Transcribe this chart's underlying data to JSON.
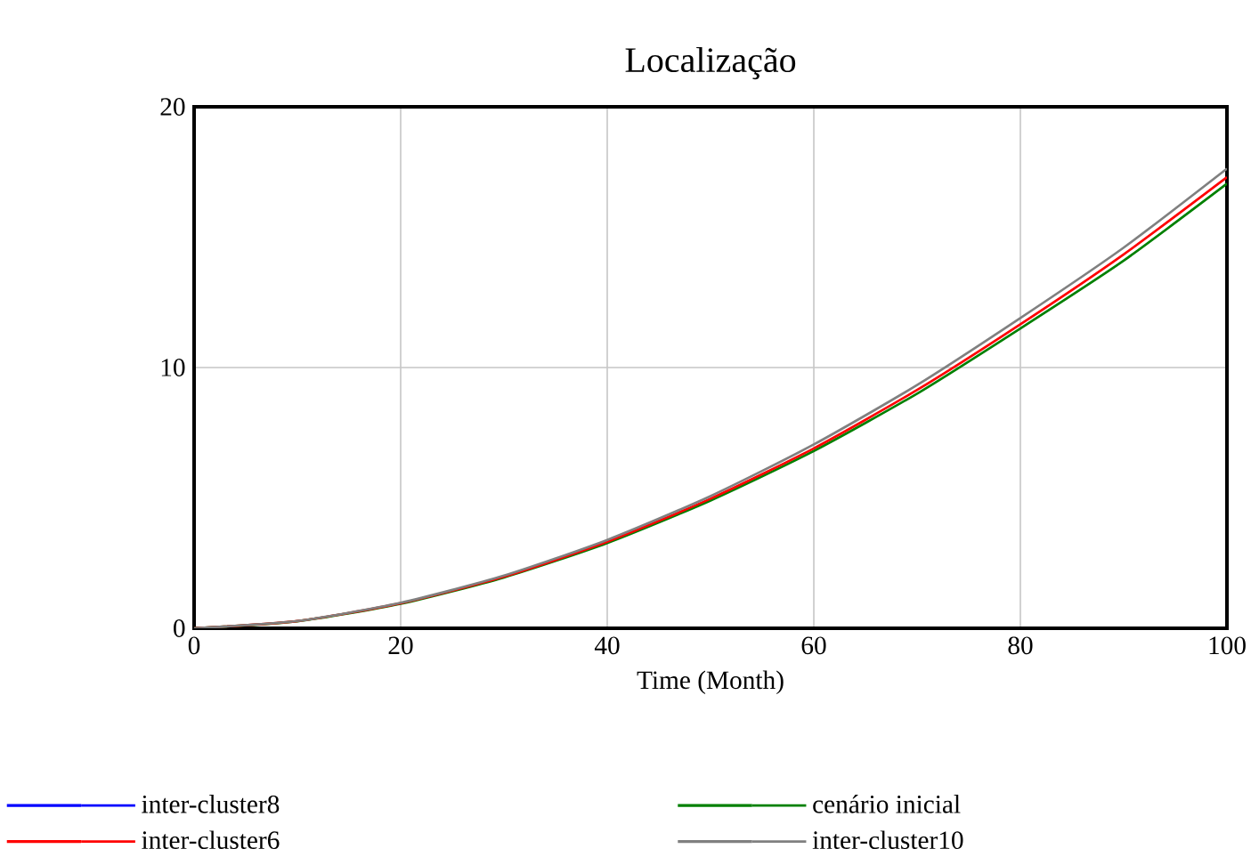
{
  "chart_data": {
    "type": "line",
    "title": "Localização",
    "xlabel": "Time (Month)",
    "x": [
      0,
      10,
      20,
      30,
      40,
      50,
      60,
      70,
      80,
      90,
      100
    ],
    "xlim": [
      0,
      100
    ],
    "ylim": [
      0,
      20
    ],
    "xticks": [
      0,
      20,
      40,
      60,
      80,
      100
    ],
    "yticks": [
      0,
      10,
      20
    ],
    "grid": true,
    "legend": "bottom",
    "marker": "none",
    "line_style": "solid",
    "series": [
      {
        "name": "inter-cluster8",
        "color": "#0000ff",
        "values": [
          null,
          null,
          null,
          null,
          null,
          null,
          null,
          null,
          null,
          null,
          null
        ]
      },
      {
        "name": "cenário inicial",
        "color": "#008000",
        "values": [
          0,
          0.27,
          0.94,
          1.95,
          3.27,
          4.9,
          6.8,
          9.0,
          11.5,
          14.1,
          17.05
        ]
      },
      {
        "name": "inter-cluster6",
        "color": "#ff0000",
        "values": [
          0,
          0.28,
          0.96,
          1.98,
          3.32,
          4.97,
          6.9,
          9.14,
          11.66,
          14.34,
          17.3
        ]
      },
      {
        "name": "inter-cluster10",
        "color": "#808080",
        "values": [
          0,
          0.28,
          0.98,
          2.02,
          3.39,
          5.07,
          7.05,
          9.33,
          11.9,
          14.6,
          17.63
        ]
      }
    ]
  }
}
